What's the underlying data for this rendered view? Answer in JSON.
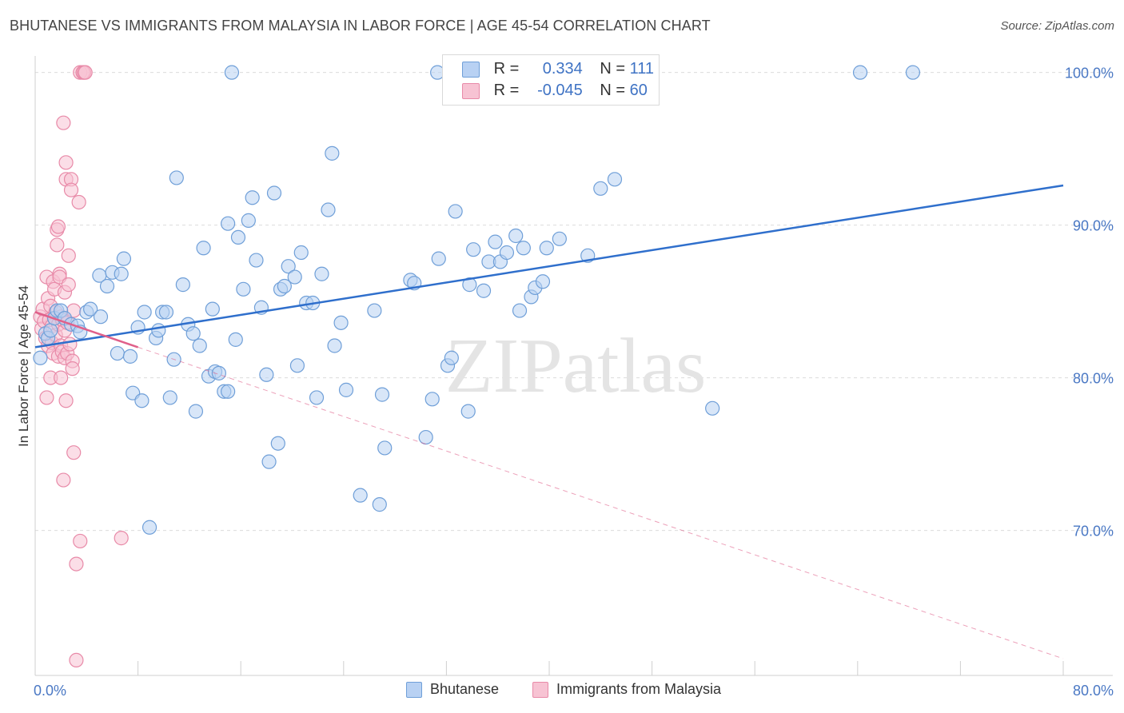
{
  "title": "BHUTANESE VS IMMIGRANTS FROM MALAYSIA IN LABOR FORCE | AGE 45-54 CORRELATION CHART",
  "source": "Source: ZipAtlas.com",
  "watermark": "ZIPatlas",
  "colors": {
    "bhutanese_fill": "#b8d1f3",
    "bhutanese_stroke": "#6f9fd8",
    "bhutanese_line": "#2f6fcc",
    "malaysia_fill": "#f7c3d3",
    "malaysia_stroke": "#e88aa8",
    "malaysia_line": "#e0608a",
    "axis_text": "#4a78c4",
    "grid": "#dcdcdc"
  },
  "legend": {
    "rows": [
      {
        "r_label": "R =",
        "r_value": "0.334",
        "n_label": "N =",
        "n_value": "111"
      },
      {
        "r_label": "R =",
        "r_value": "-0.045",
        "n_label": "N =",
        "n_value": "60"
      }
    ]
  },
  "bottom_legend": {
    "series1": "Bhutanese",
    "series2": "Immigrants from Malaysia"
  },
  "chart_data": {
    "type": "scatter",
    "xlabel": "",
    "ylabel": "In Labor Force | Age 45-54",
    "xlim": [
      0,
      80
    ],
    "ylim": [
      60.5,
      101.5
    ],
    "x_tick_labels": [
      "0.0%",
      "80.0%"
    ],
    "y_ticks": [
      70,
      80,
      90,
      100
    ],
    "y_tick_labels": [
      "70.0%",
      "80.0%",
      "90.0%",
      "100.0%"
    ],
    "series": [
      {
        "name": "Bhutanese",
        "r": 0.334,
        "n": 111,
        "trend": {
          "x": [
            0,
            80
          ],
          "y": [
            82.0,
            92.6
          ]
        },
        "points": [
          [
            0.4,
            81.3
          ],
          [
            0.8,
            82.9
          ],
          [
            1.0,
            82.6
          ],
          [
            1.2,
            83.1
          ],
          [
            1.5,
            83.9
          ],
          [
            1.7,
            84.4
          ],
          [
            2.0,
            84.4
          ],
          [
            2.3,
            83.9
          ],
          [
            2.8,
            83.5
          ],
          [
            3.3,
            83.4
          ],
          [
            3.5,
            83.0
          ],
          [
            4.0,
            84.3
          ],
          [
            4.3,
            84.5
          ],
          [
            5.1,
            84.0
          ],
          [
            5.0,
            86.7
          ],
          [
            5.6,
            86.0
          ],
          [
            6.0,
            86.9
          ],
          [
            6.4,
            81.6
          ],
          [
            6.7,
            86.8
          ],
          [
            6.9,
            87.8
          ],
          [
            7.4,
            81.4
          ],
          [
            7.6,
            79.0
          ],
          [
            8.0,
            83.3
          ],
          [
            8.3,
            78.5
          ],
          [
            8.5,
            84.3
          ],
          [
            8.9,
            70.2
          ],
          [
            9.4,
            82.6
          ],
          [
            9.6,
            83.1
          ],
          [
            9.9,
            84.3
          ],
          [
            10.2,
            84.3
          ],
          [
            10.5,
            78.7
          ],
          [
            10.8,
            81.2
          ],
          [
            11.0,
            93.1
          ],
          [
            11.5,
            86.1
          ],
          [
            11.9,
            83.5
          ],
          [
            12.3,
            82.9
          ],
          [
            12.5,
            77.8
          ],
          [
            12.8,
            82.1
          ],
          [
            13.1,
            88.5
          ],
          [
            13.5,
            80.1
          ],
          [
            13.8,
            84.5
          ],
          [
            14.0,
            80.4
          ],
          [
            14.3,
            80.3
          ],
          [
            14.7,
            79.1
          ],
          [
            15.0,
            90.1
          ],
          [
            15.3,
            100.0
          ],
          [
            15.6,
            82.5
          ],
          [
            15.8,
            89.2
          ],
          [
            16.2,
            85.8
          ],
          [
            16.6,
            90.3
          ],
          [
            16.9,
            91.8
          ],
          [
            17.2,
            87.7
          ],
          [
            17.6,
            84.6
          ],
          [
            18.0,
            80.2
          ],
          [
            18.2,
            74.5
          ],
          [
            18.6,
            92.1
          ],
          [
            18.9,
            75.7
          ],
          [
            19.1,
            85.8
          ],
          [
            19.4,
            86.0
          ],
          [
            19.7,
            87.3
          ],
          [
            20.2,
            86.6
          ],
          [
            20.4,
            80.8
          ],
          [
            20.7,
            88.2
          ],
          [
            21.1,
            84.9
          ],
          [
            21.6,
            84.9
          ],
          [
            21.9,
            78.7
          ],
          [
            22.3,
            86.8
          ],
          [
            22.8,
            91.0
          ],
          [
            23.1,
            94.7
          ],
          [
            23.3,
            82.1
          ],
          [
            23.8,
            83.6
          ],
          [
            24.2,
            79.2
          ],
          [
            25.3,
            72.3
          ],
          [
            26.4,
            84.4
          ],
          [
            26.8,
            71.7
          ],
          [
            27.0,
            78.9
          ],
          [
            27.2,
            75.4
          ],
          [
            29.2,
            86.4
          ],
          [
            29.5,
            86.2
          ],
          [
            30.4,
            76.1
          ],
          [
            30.9,
            78.6
          ],
          [
            31.3,
            100.0
          ],
          [
            31.4,
            87.8
          ],
          [
            32.1,
            80.8
          ],
          [
            32.4,
            81.3
          ],
          [
            32.7,
            90.9
          ],
          [
            33.7,
            77.8
          ],
          [
            33.8,
            86.1
          ],
          [
            34.1,
            88.4
          ],
          [
            34.9,
            85.7
          ],
          [
            35.3,
            87.6
          ],
          [
            35.8,
            88.9
          ],
          [
            36.2,
            87.6
          ],
          [
            36.7,
            88.2
          ],
          [
            37.4,
            89.3
          ],
          [
            37.7,
            84.4
          ],
          [
            38.0,
            88.5
          ],
          [
            38.6,
            85.3
          ],
          [
            38.9,
            85.9
          ],
          [
            39.5,
            86.3
          ],
          [
            39.8,
            88.5
          ],
          [
            40.8,
            89.1
          ],
          [
            43.0,
            88.0
          ],
          [
            44.0,
            92.4
          ],
          [
            45.1,
            93.0
          ],
          [
            52.7,
            78.0
          ],
          [
            64.2,
            100.0
          ],
          [
            68.3,
            100.0
          ],
          [
            15.0,
            79.1
          ]
        ]
      },
      {
        "name": "Immigrants from Malaysia",
        "r": -0.045,
        "n": 60,
        "trend": {
          "x": [
            0,
            8
          ],
          "y": [
            84.3,
            82.0
          ]
        },
        "trend_extended": {
          "x": [
            8,
            80
          ],
          "y": [
            82.0,
            61.6
          ]
        },
        "points": [
          [
            0.4,
            84.0
          ],
          [
            0.5,
            83.2
          ],
          [
            0.6,
            84.5
          ],
          [
            0.7,
            83.7
          ],
          [
            0.8,
            82.6
          ],
          [
            0.9,
            86.6
          ],
          [
            0.9,
            78.7
          ],
          [
            1.0,
            82.1
          ],
          [
            1.0,
            85.2
          ],
          [
            1.1,
            83.8
          ],
          [
            1.2,
            84.7
          ],
          [
            1.2,
            80.0
          ],
          [
            1.3,
            83.4
          ],
          [
            1.3,
            82.3
          ],
          [
            1.4,
            86.3
          ],
          [
            1.4,
            81.6
          ],
          [
            1.5,
            85.8
          ],
          [
            1.5,
            83.9
          ],
          [
            1.6,
            84.3
          ],
          [
            1.6,
            82.8
          ],
          [
            1.7,
            89.7
          ],
          [
            1.7,
            88.7
          ],
          [
            1.8,
            89.9
          ],
          [
            1.8,
            83.5
          ],
          [
            1.8,
            81.4
          ],
          [
            1.9,
            86.8
          ],
          [
            1.9,
            86.6
          ],
          [
            2.0,
            84.0
          ],
          [
            2.0,
            82.1
          ],
          [
            2.0,
            80.0
          ],
          [
            2.1,
            83.8
          ],
          [
            2.1,
            81.7
          ],
          [
            2.2,
            96.7
          ],
          [
            2.2,
            73.3
          ],
          [
            2.3,
            85.6
          ],
          [
            2.3,
            83.1
          ],
          [
            2.3,
            81.3
          ],
          [
            2.4,
            94.1
          ],
          [
            2.4,
            93.0
          ],
          [
            2.4,
            78.5
          ],
          [
            2.5,
            83.6
          ],
          [
            2.5,
            81.6
          ],
          [
            2.6,
            88.0
          ],
          [
            2.6,
            86.1
          ],
          [
            2.7,
            82.2
          ],
          [
            2.8,
            93.0
          ],
          [
            2.8,
            92.3
          ],
          [
            2.9,
            81.1
          ],
          [
            2.9,
            80.6
          ],
          [
            3.0,
            84.4
          ],
          [
            3.0,
            75.1
          ],
          [
            3.2,
            61.5
          ],
          [
            3.2,
            67.8
          ],
          [
            3.5,
            69.3
          ],
          [
            3.5,
            100.0
          ],
          [
            3.7,
            100.0
          ],
          [
            3.8,
            100.0
          ],
          [
            3.4,
            91.5
          ],
          [
            3.9,
            100.0
          ],
          [
            6.7,
            69.5
          ]
        ]
      }
    ]
  }
}
